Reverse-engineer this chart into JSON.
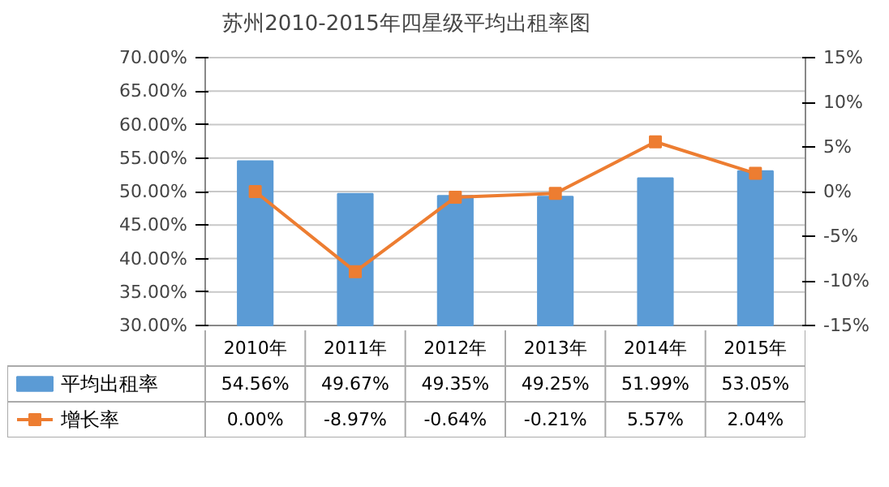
{
  "chart_data": {
    "type": "bar",
    "title": "苏州2010-2015年四星级平均出租率图",
    "categories": [
      "2010年",
      "2011年",
      "2012年",
      "2013年",
      "2014年",
      "2015年"
    ],
    "series": [
      {
        "name": "平均出租率",
        "color": "#5b9bd5",
        "values": [
          54.56,
          49.67,
          49.35,
          49.25,
          51.99,
          53.05
        ],
        "value_labels": [
          "54.56%",
          "49.67%",
          "49.35%",
          "49.25%",
          "51.99%",
          "53.05%"
        ]
      },
      {
        "name": "增长率",
        "type": "line",
        "axis": "y2",
        "color": "#ed7d31",
        "marker": "square",
        "values": [
          0.0,
          -8.97,
          -0.64,
          -0.21,
          5.57,
          2.04
        ],
        "value_labels": [
          "0.00%",
          "-8.97%",
          "-0.64%",
          "-0.21%",
          "5.57%",
          "2.04%"
        ]
      }
    ],
    "ylim": [
      30,
      70
    ],
    "yticks": [
      {
        "value": 30,
        "label": "30.00%"
      },
      {
        "value": 35,
        "label": "35.00%"
      },
      {
        "value": 40,
        "label": "40.00%"
      },
      {
        "value": 45,
        "label": "45.00%"
      },
      {
        "value": 50,
        "label": "50.00%"
      },
      {
        "value": 55,
        "label": "55.00%"
      },
      {
        "value": 60,
        "label": "60.00%"
      },
      {
        "value": 65,
        "label": "65.00%"
      },
      {
        "value": 70,
        "label": "70.00%"
      }
    ],
    "y2lim": [
      -15,
      15
    ],
    "y2ticks": [
      {
        "value": -15,
        "label": "-15%"
      },
      {
        "value": -10,
        "label": "-10%"
      },
      {
        "value": -5,
        "label": "-5%"
      },
      {
        "value": 0,
        "label": "0%"
      },
      {
        "value": 5,
        "label": "5%"
      },
      {
        "value": 10,
        "label": "10%"
      },
      {
        "value": 15,
        "label": "15%"
      }
    ],
    "grid": "y",
    "legend": "bottom",
    "line_style": "solid"
  }
}
